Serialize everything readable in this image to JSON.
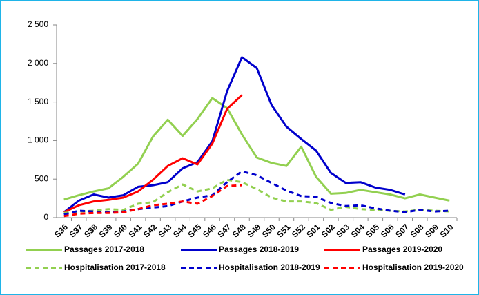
{
  "chart_data": {
    "type": "line",
    "categories": [
      "S36",
      "S37",
      "S38",
      "S39",
      "S40",
      "S41",
      "S42",
      "S43",
      "S44",
      "S45",
      "S46",
      "S47",
      "S48",
      "S49",
      "S50",
      "S51",
      "S52",
      "S01",
      "S02",
      "S03",
      "S04",
      "S05",
      "S06",
      "S07",
      "S08",
      "S09",
      "S10"
    ],
    "ylim": [
      0,
      2500
    ],
    "yticks": [
      0,
      500,
      {
        "value": 1000,
        "label": "1 000"
      },
      {
        "value": 1500,
        "label": "1 500"
      },
      {
        "value": 2000,
        "label": "2 000"
      },
      {
        "value": 2500,
        "label": "2 500"
      }
    ],
    "grid": false,
    "legend": "bottom",
    "series": [
      {
        "name": "Passages 2017-2018",
        "color": "#92d050",
        "dashed": false,
        "values": [
          235,
          290,
          340,
          380,
          530,
          700,
          1050,
          1270,
          1060,
          1280,
          1550,
          1420,
          1080,
          780,
          710,
          670,
          920,
          530,
          310,
          320,
          360,
          330,
          300,
          250,
          300,
          260,
          220
        ]
      },
      {
        "name": "Passages 2018-2019",
        "color": "#0000cc",
        "dashed": false,
        "values": [
          70,
          220,
          300,
          260,
          290,
          400,
          420,
          460,
          640,
          720,
          990,
          1640,
          2080,
          1940,
          1460,
          1180,
          1020,
          870,
          580,
          450,
          460,
          390,
          360,
          300,
          null,
          null,
          null
        ]
      },
      {
        "name": "Passages 2019-2020",
        "color": "#ff0000",
        "dashed": false,
        "values": [
          70,
          160,
          210,
          230,
          260,
          340,
          490,
          670,
          770,
          690,
          960,
          1410,
          1590,
          null,
          null,
          null,
          null,
          null,
          null,
          null,
          null,
          null,
          null,
          null,
          null,
          null,
          null
        ]
      },
      {
        "name": "Hospitalisation 2017-2018",
        "color": "#92d050",
        "dashed": true,
        "values": [
          60,
          80,
          90,
          110,
          100,
          180,
          200,
          330,
          430,
          340,
          380,
          490,
          460,
          370,
          260,
          210,
          210,
          190,
          100,
          140,
          110,
          100,
          90,
          80,
          100,
          90,
          80
        ]
      },
      {
        "name": "Hospitalisation 2018-2019",
        "color": "#0000cc",
        "dashed": true,
        "values": [
          40,
          90,
          80,
          70,
          80,
          110,
          130,
          150,
          210,
          260,
          290,
          460,
          600,
          550,
          450,
          350,
          280,
          270,
          190,
          150,
          160,
          120,
          90,
          70,
          100,
          80,
          90
        ]
      },
      {
        "name": "Hospitalisation 2019-2020",
        "color": "#ff0000",
        "dashed": true,
        "values": [
          20,
          50,
          60,
          60,
          70,
          110,
          160,
          180,
          210,
          180,
          280,
          410,
          420,
          null,
          null,
          null,
          null,
          null,
          null,
          null,
          null,
          null,
          null,
          null,
          null,
          null,
          null
        ]
      }
    ]
  }
}
